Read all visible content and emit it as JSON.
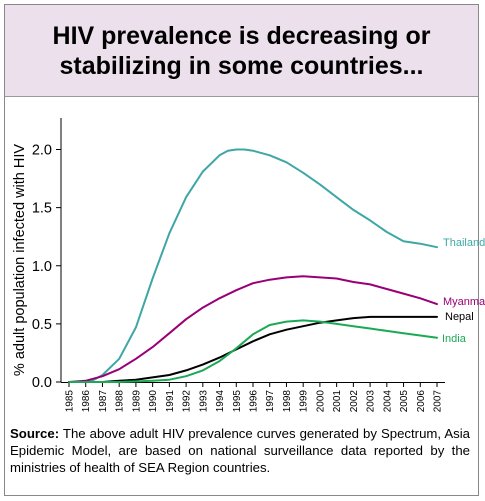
{
  "title": {
    "line1": "HIV prevalence is decreasing or",
    "line2": "stabilizing in some countries..."
  },
  "chart_data": {
    "type": "line",
    "title": "HIV prevalence is decreasing or stabilizing in some countries...",
    "ylabel": "% adult population infected with HIV",
    "xlabel": "",
    "ylim": [
      0,
      2.2
    ],
    "yticks": [
      0.0,
      0.5,
      1.0,
      1.5,
      2.0
    ],
    "ytick_labels": [
      "0.0",
      "0.5",
      "1.0",
      "1.5",
      "2.0"
    ],
    "x": [
      "1985",
      "1986",
      "1987",
      "1988",
      "1989",
      "1990",
      "1991",
      "1992",
      "1993",
      "1994",
      "1995",
      "1996",
      "1997",
      "1998",
      "1999",
      "2000",
      "2001",
      "2002",
      "2003",
      "2004",
      "2005",
      "2006",
      "2007"
    ],
    "legend": "inline labels at line ends",
    "series": [
      {
        "name": "Thailand",
        "color": "#3fa6a6",
        "values": [
          [
            1985,
            0.0
          ],
          [
            1986,
            0.0
          ],
          [
            1986.5,
            0.02
          ],
          [
            1987,
            0.06
          ],
          [
            1988,
            0.2
          ],
          [
            1989,
            0.47
          ],
          [
            1990,
            0.89
          ],
          [
            1991,
            1.28
          ],
          [
            1992,
            1.59
          ],
          [
            1993,
            1.81
          ],
          [
            1994,
            1.95
          ],
          [
            1994.5,
            1.99
          ],
          [
            1995,
            2.0
          ],
          [
            1995.5,
            2.0
          ],
          [
            1996,
            1.99
          ],
          [
            1997,
            1.95
          ],
          [
            1998,
            1.89
          ],
          [
            1999,
            1.8
          ],
          [
            2000,
            1.7
          ],
          [
            2001,
            1.59
          ],
          [
            2002,
            1.48
          ],
          [
            2003,
            1.39
          ],
          [
            2004,
            1.29
          ],
          [
            2005,
            1.21
          ],
          [
            2006,
            1.19
          ],
          [
            2007,
            1.16
          ]
        ]
      },
      {
        "name": "Myanma",
        "color": "#990077",
        "values": [
          [
            1985,
            0.0
          ],
          [
            1986,
            0.01
          ],
          [
            1987,
            0.05
          ],
          [
            1988,
            0.11
          ],
          [
            1989,
            0.2
          ],
          [
            1990,
            0.3
          ],
          [
            1991,
            0.42
          ],
          [
            1992,
            0.54
          ],
          [
            1993,
            0.64
          ],
          [
            1994,
            0.72
          ],
          [
            1995,
            0.79
          ],
          [
            1996,
            0.85
          ],
          [
            1997,
            0.88
          ],
          [
            1998,
            0.9
          ],
          [
            1999,
            0.91
          ],
          [
            2000,
            0.9
          ],
          [
            2001,
            0.89
          ],
          [
            2002,
            0.86
          ],
          [
            2003,
            0.84
          ],
          [
            2004,
            0.8
          ],
          [
            2005,
            0.76
          ],
          [
            2006,
            0.72
          ],
          [
            2007,
            0.67
          ]
        ]
      },
      {
        "name": "Nepal",
        "color": "#000000",
        "values": [
          [
            1985,
            0.0
          ],
          [
            1987,
            0.0
          ],
          [
            1988,
            0.01
          ],
          [
            1989,
            0.02
          ],
          [
            1990,
            0.04
          ],
          [
            1991,
            0.06
          ],
          [
            1992,
            0.1
          ],
          [
            1993,
            0.15
          ],
          [
            1994,
            0.21
          ],
          [
            1995,
            0.28
          ],
          [
            1996,
            0.35
          ],
          [
            1997,
            0.41
          ],
          [
            1998,
            0.45
          ],
          [
            1999,
            0.48
          ],
          [
            2000,
            0.51
          ],
          [
            2001,
            0.53
          ],
          [
            2002,
            0.55
          ],
          [
            2003,
            0.56
          ],
          [
            2004,
            0.56
          ],
          [
            2005,
            0.56
          ],
          [
            2006,
            0.56
          ],
          [
            2007,
            0.56
          ]
        ]
      },
      {
        "name": "India",
        "color": "#1aaa55",
        "values": [
          [
            1985,
            0.0
          ],
          [
            1988,
            0.0
          ],
          [
            1989,
            0.005
          ],
          [
            1990,
            0.01
          ],
          [
            1991,
            0.02
          ],
          [
            1992,
            0.05
          ],
          [
            1993,
            0.1
          ],
          [
            1994,
            0.18
          ],
          [
            1995,
            0.29
          ],
          [
            1996,
            0.41
          ],
          [
            1997,
            0.49
          ],
          [
            1998,
            0.52
          ],
          [
            1999,
            0.53
          ],
          [
            2000,
            0.52
          ],
          [
            2001,
            0.5
          ],
          [
            2002,
            0.48
          ],
          [
            2003,
            0.46
          ],
          [
            2004,
            0.44
          ],
          [
            2005,
            0.42
          ],
          [
            2006,
            0.4
          ],
          [
            2007,
            0.38
          ]
        ]
      }
    ]
  },
  "source": {
    "label": "Source:",
    "text": " The above adult HIV prevalence curves generated by Spectrum, Asia Epidemic Model, are based on national surveillance data reported by the ministries of health of SEA Region countries."
  }
}
